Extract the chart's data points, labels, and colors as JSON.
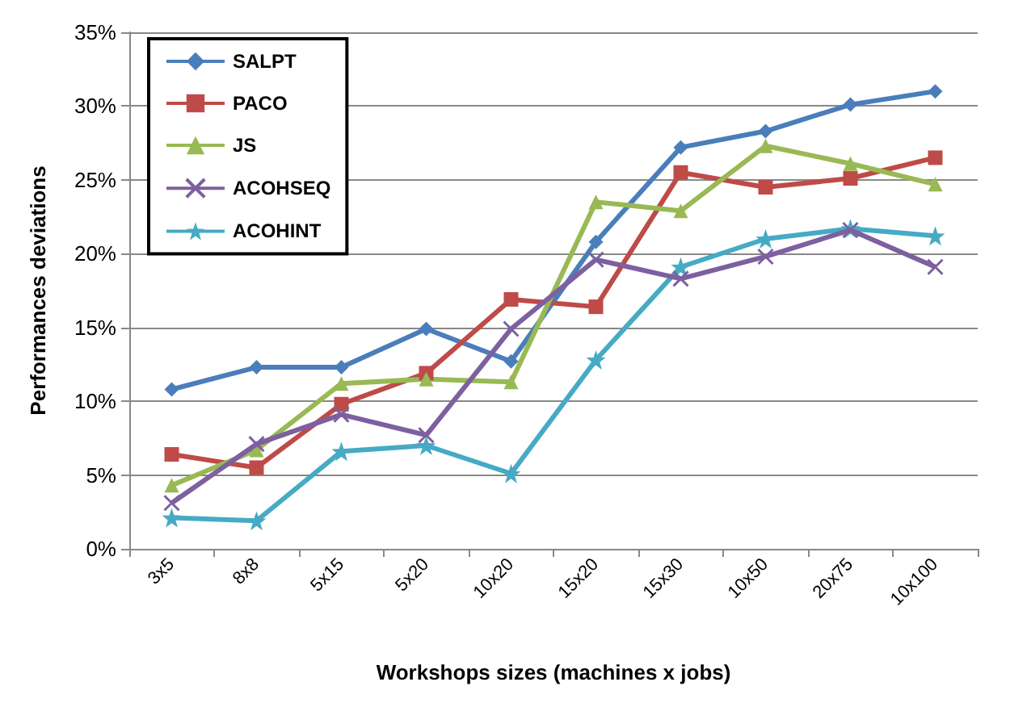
{
  "chart_data": {
    "type": "line",
    "xlabel": "Workshops sizes (machines x jobs)",
    "ylabel": "Performances deviations",
    "categories": [
      "3x5",
      "8x8",
      "5x15",
      "5x20",
      "10x20",
      "15x20",
      "15x30",
      "10x50",
      "20x75",
      "10x100"
    ],
    "series": [
      {
        "name": "SALPT",
        "color": "#4a7ebb",
        "marker": "diamond",
        "values": [
          10.8,
          12.3,
          12.3,
          14.9,
          12.7,
          20.8,
          27.2,
          28.3,
          30.1,
          31.0
        ]
      },
      {
        "name": "PACO",
        "color": "#be4b48",
        "marker": "square",
        "values": [
          6.4,
          5.5,
          9.8,
          11.9,
          16.9,
          16.4,
          25.5,
          24.5,
          25.1,
          26.5
        ]
      },
      {
        "name": "JS",
        "color": "#98b954",
        "marker": "triangle",
        "values": [
          4.3,
          6.7,
          11.2,
          11.5,
          11.3,
          23.5,
          22.9,
          27.3,
          26.1,
          24.7
        ]
      },
      {
        "name": "ACOHSEQ",
        "color": "#7d60a0",
        "marker": "cross",
        "values": [
          3.1,
          7.1,
          9.1,
          7.7,
          14.9,
          19.6,
          18.3,
          19.8,
          21.6,
          19.1
        ]
      },
      {
        "name": "ACOHINT",
        "color": "#46aac5",
        "marker": "star",
        "values": [
          2.1,
          1.9,
          6.6,
          7.0,
          5.1,
          12.8,
          19.1,
          21.0,
          21.7,
          21.2
        ]
      }
    ],
    "ylim": [
      0,
      35
    ],
    "yticks": [
      {
        "value": 0,
        "label": "0%"
      },
      {
        "value": 5,
        "label": "5%"
      },
      {
        "value": 10,
        "label": "10%"
      },
      {
        "value": 15,
        "label": "15%"
      },
      {
        "value": 20,
        "label": "20%"
      },
      {
        "value": 25,
        "label": "25%"
      },
      {
        "value": 30,
        "label": "30%"
      },
      {
        "value": 35,
        "label": "35%"
      }
    ],
    "grid": "y",
    "legend": "top left",
    "line_style": "solid"
  }
}
